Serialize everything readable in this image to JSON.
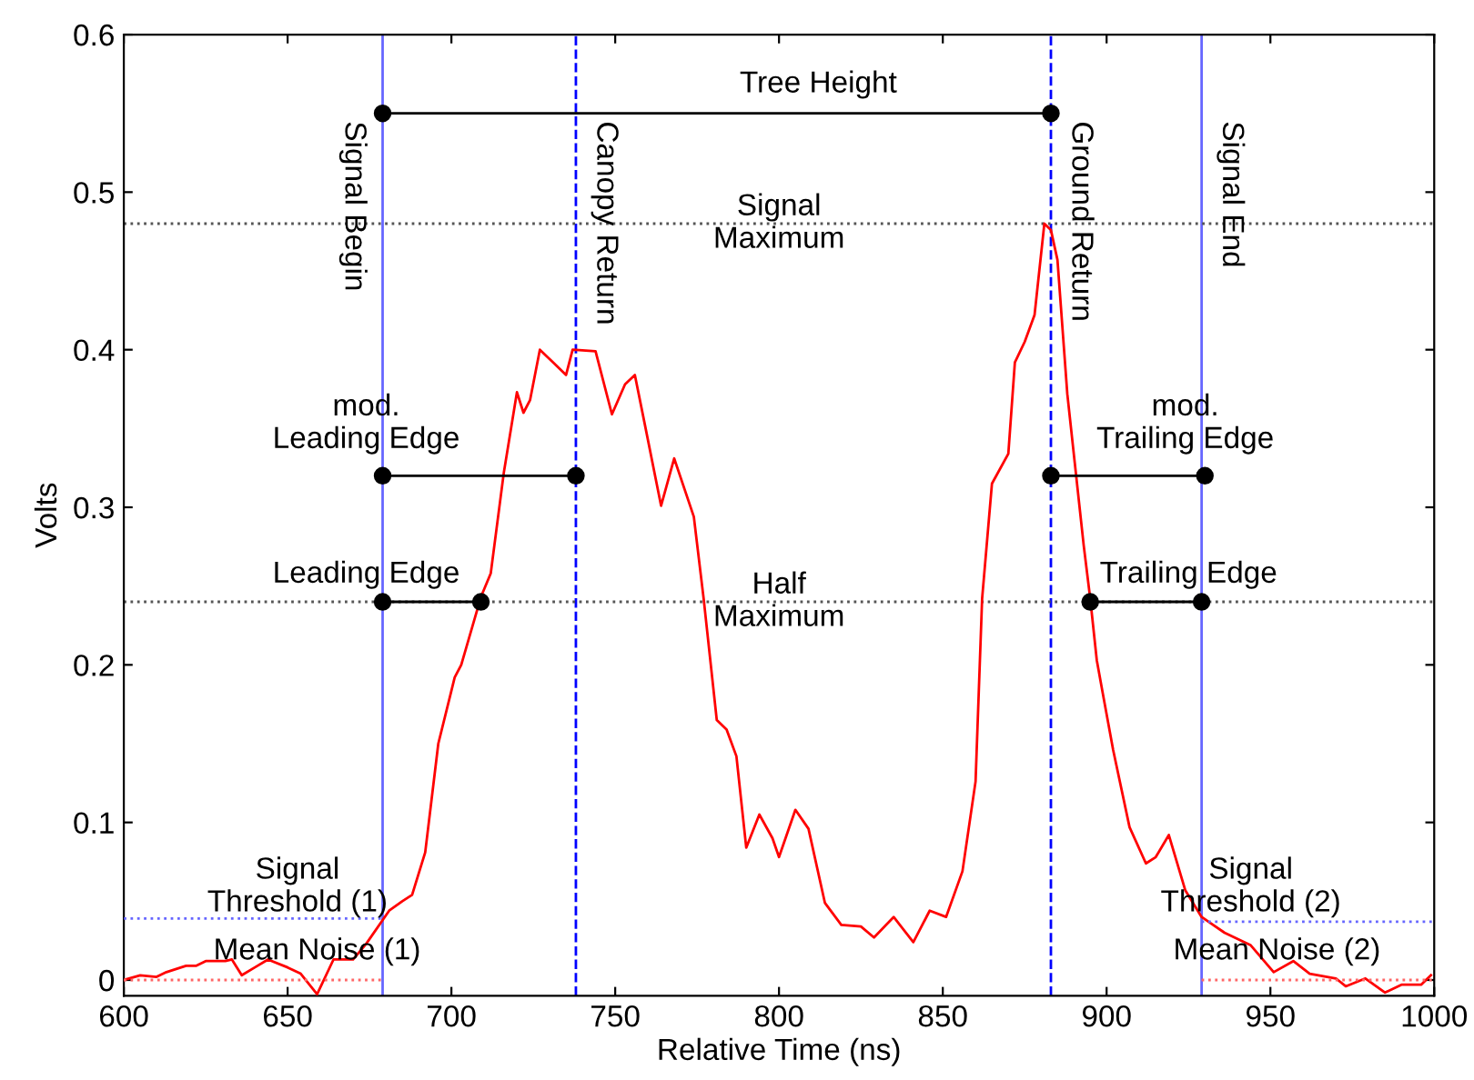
{
  "chart_data": {
    "type": "line",
    "xlabel": "Relative Time (ns)",
    "ylabel": "Volts",
    "xlim": [
      600,
      1000
    ],
    "xticks": [
      600,
      650,
      700,
      750,
      800,
      850,
      900,
      950,
      1000
    ],
    "ylim": [
      -0.01,
      0.6
    ],
    "yticks": [
      0,
      0.1,
      0.2,
      0.3,
      0.4,
      0.5,
      0.6
    ],
    "grid": false,
    "marker": "none",
    "line_style": "solid",
    "series": [
      {
        "color": "#ff0000",
        "x": [
          600,
          605,
          610,
          613,
          619,
          622,
          625,
          631,
          633,
          636,
          640,
          644,
          650,
          654,
          659,
          664,
          670,
          674,
          681,
          685,
          688,
          692,
          696,
          701,
          703,
          709,
          712,
          716,
          720,
          722,
          724,
          727,
          731,
          735,
          737,
          744,
          749,
          753,
          756,
          759,
          764,
          768,
          774,
          777,
          781,
          784,
          787,
          790,
          794,
          798,
          800,
          805,
          809,
          814,
          819,
          825,
          829,
          835,
          841,
          846,
          851,
          856,
          860,
          862,
          865,
          870,
          872,
          875,
          878,
          881,
          883,
          885,
          888,
          893,
          895,
          897,
          899,
          902,
          907,
          912,
          915,
          919,
          924,
          929,
          936,
          944,
          951,
          957,
          962,
          970,
          973,
          979,
          985,
          990,
          996,
          999
        ],
        "values": [
          0.0,
          0.003,
          0.002,
          0.005,
          0.009,
          0.009,
          0.012,
          0.012,
          0.013,
          0.003,
          0.008,
          0.013,
          0.008,
          0.004,
          -0.009,
          0.013,
          0.013,
          0.023,
          0.044,
          0.05,
          0.054,
          0.081,
          0.15,
          0.192,
          0.2,
          0.243,
          0.258,
          0.322,
          0.373,
          0.36,
          0.368,
          0.4,
          0.392,
          0.384,
          0.4,
          0.399,
          0.359,
          0.378,
          0.384,
          0.353,
          0.301,
          0.331,
          0.294,
          0.242,
          0.165,
          0.159,
          0.142,
          0.084,
          0.105,
          0.09,
          0.078,
          0.108,
          0.096,
          0.049,
          0.035,
          0.034,
          0.027,
          0.04,
          0.024,
          0.044,
          0.04,
          0.069,
          0.126,
          0.242,
          0.315,
          0.334,
          0.392,
          0.405,
          0.422,
          0.48,
          0.476,
          0.457,
          0.372,
          0.276,
          0.242,
          0.203,
          0.18,
          0.146,
          0.097,
          0.074,
          0.078,
          0.092,
          0.057,
          0.04,
          0.03,
          0.022,
          0.005,
          0.012,
          0.004,
          0.001,
          -0.004,
          0.001,
          -0.008,
          -0.003,
          -0.003,
          0.003
        ]
      },
      {
        "color": "#000000",
        "marker": "circle",
        "x": [
          679,
          883
        ],
        "values": [
          0.55,
          0.55
        ]
      },
      {
        "color": "#000000",
        "marker": "circle",
        "x": [
          679,
          738
        ],
        "values": [
          0.32,
          0.32
        ]
      },
      {
        "color": "#000000",
        "marker": "circle",
        "x": [
          679,
          709
        ],
        "values": [
          0.24,
          0.24
        ]
      },
      {
        "color": "#000000",
        "marker": "circle",
        "x": [
          883,
          930
        ],
        "values": [
          0.32,
          0.32
        ]
      },
      {
        "color": "#000000",
        "marker": "circle",
        "x": [
          895,
          929
        ],
        "values": [
          0.24,
          0.24
        ]
      },
      {
        "color": "#6666ff",
        "line_style": "dotted",
        "x": [
          600,
          679
        ],
        "values": [
          0.039,
          0.039
        ]
      },
      {
        "color": "#ff6666",
        "line_style": "dotted",
        "x": [
          600,
          679
        ],
        "values": [
          0.0,
          0.0
        ]
      },
      {
        "color": "#6666ff",
        "line_style": "dotted",
        "x": [
          929,
          1000
        ],
        "values": [
          0.037,
          0.037
        ]
      },
      {
        "color": "#ff6666",
        "line_style": "dotted",
        "x": [
          929,
          1000
        ],
        "values": [
          0.0,
          0.0
        ]
      }
    ],
    "ref_lines": [
      {
        "axis": "x",
        "value": 679,
        "label": "Signal Begin",
        "color": "#6666ff",
        "line_style": "solid"
      },
      {
        "axis": "x",
        "value": 738,
        "label": "Canopy Return",
        "color": "#0000ff",
        "line_style": "dashed"
      },
      {
        "axis": "x",
        "value": 883,
        "label": "Ground Return",
        "color": "#0000ff",
        "line_style": "dashed"
      },
      {
        "axis": "x",
        "value": 929,
        "label": "Signal End",
        "color": "#6666ff",
        "line_style": "solid"
      },
      {
        "axis": "y",
        "value": 0.48,
        "label": "Signal\nMaximum",
        "color": "#555555",
        "line_style": "dotted"
      },
      {
        "axis": "y",
        "value": 0.24,
        "label": "Half\nMaximum",
        "color": "#555555",
        "line_style": "dotted"
      }
    ],
    "annotations": [
      "Tree Height",
      "mod.\nLeading Edge",
      "Leading Edge",
      "mod.\nTrailing Edge",
      "Trailing Edge",
      "Signal\nThreshold (1)",
      "Mean Noise (1)",
      "Signal\nThreshold (2)",
      "Mean Noise (2)"
    ]
  }
}
